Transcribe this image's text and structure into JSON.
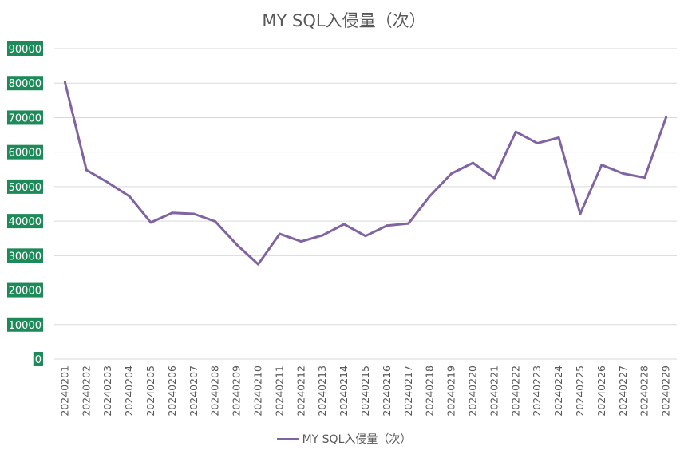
{
  "chart_data": {
    "type": "line",
    "title": "MY SQL入侵量（次）",
    "categories": [
      "20240201",
      "20240202",
      "20240203",
      "20240204",
      "20240205",
      "20240206",
      "20240207",
      "20240208",
      "20240209",
      "20240210",
      "20240211",
      "20240212",
      "20240213",
      "20240214",
      "20240215",
      "20240216",
      "20240217",
      "20240218",
      "20240219",
      "20240220",
      "20240221",
      "20240222",
      "20240223",
      "20240224",
      "20240225",
      "20240226",
      "20240227",
      "20240228",
      "20240229"
    ],
    "series": [
      {
        "name": "MY SQL入侵量（次）",
        "color": "#8064a2",
        "values": [
          80300,
          54800,
          51200,
          47200,
          39600,
          42400,
          42100,
          39900,
          33200,
          27500,
          36300,
          34100,
          35900,
          39100,
          35700,
          38700,
          39300,
          47300,
          53800,
          56900,
          52500,
          65900,
          62600,
          64200,
          42100,
          56300,
          53800,
          52600,
          70100
        ]
      }
    ],
    "yticks": [
      "0",
      "10000",
      "20000",
      "30000",
      "40000",
      "50000",
      "60000",
      "70000",
      "80000",
      "90000"
    ],
    "ylim": [
      0,
      90000
    ],
    "grid": true,
    "legend_position": "bottom",
    "ytick_label_color": "#1e8a5a"
  }
}
